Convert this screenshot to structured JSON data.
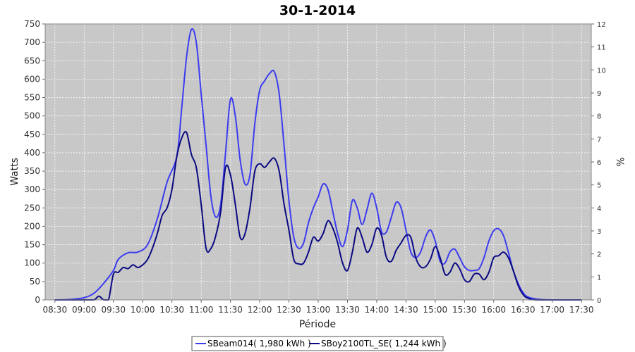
{
  "chart_data": {
    "type": "line",
    "title": "30-1-2014",
    "xlabel": "Périodе",
    "ylabel": "Watts",
    "y2label": "%",
    "ylim": [
      0,
      750
    ],
    "y2lim": [
      0,
      12
    ],
    "xlim": [
      "08:20",
      "17:40"
    ],
    "yticks": [
      0,
      50,
      100,
      150,
      200,
      250,
      300,
      350,
      400,
      450,
      500,
      550,
      600,
      650,
      700,
      750
    ],
    "y2ticks": [
      0,
      1,
      2,
      3,
      4,
      5,
      6,
      7,
      8,
      9,
      10,
      11,
      12
    ],
    "xticks": [
      "08:30",
      "09:00",
      "09:30",
      "10:00",
      "10:30",
      "11:00",
      "11:30",
      "12:00",
      "12:30",
      "13:00",
      "13:30",
      "14:00",
      "14:30",
      "15:00",
      "15:30",
      "16:00",
      "16:30",
      "17:00",
      "17:30"
    ],
    "grid": true,
    "legend_position": "bottom",
    "colors": {
      "plot_bg": "#c8c8c8",
      "grid": "#ffffff"
    },
    "series": [
      {
        "name": "SBeam014( 1,980 kWh )",
        "color": "#3c3cf0",
        "points": [
          [
            "08:30",
            0
          ],
          [
            "08:45",
            1
          ],
          [
            "09:00",
            6
          ],
          [
            "09:10",
            18
          ],
          [
            "09:20",
            45
          ],
          [
            "09:30",
            80
          ],
          [
            "09:35",
            110
          ],
          [
            "09:45",
            128
          ],
          [
            "09:55",
            130
          ],
          [
            "10:05",
            150
          ],
          [
            "10:15",
            220
          ],
          [
            "10:25",
            320
          ],
          [
            "10:35",
            390
          ],
          [
            "10:40",
            520
          ],
          [
            "10:45",
            660
          ],
          [
            "10:50",
            735
          ],
          [
            "10:55",
            700
          ],
          [
            "11:00",
            560
          ],
          [
            "11:05",
            420
          ],
          [
            "11:10",
            280
          ],
          [
            "11:15",
            225
          ],
          [
            "11:20",
            260
          ],
          [
            "11:25",
            400
          ],
          [
            "11:30",
            545
          ],
          [
            "11:35",
            500
          ],
          [
            "11:40",
            380
          ],
          [
            "11:45",
            315
          ],
          [
            "11:50",
            340
          ],
          [
            "11:55",
            480
          ],
          [
            "12:00",
            570
          ],
          [
            "12:05",
            595
          ],
          [
            "12:10",
            615
          ],
          [
            "12:15",
            620
          ],
          [
            "12:20",
            560
          ],
          [
            "12:25",
            420
          ],
          [
            "12:30",
            270
          ],
          [
            "12:35",
            170
          ],
          [
            "12:40",
            140
          ],
          [
            "12:45",
            155
          ],
          [
            "12:50",
            210
          ],
          [
            "12:55",
            250
          ],
          [
            "13:00",
            280
          ],
          [
            "13:05",
            315
          ],
          [
            "13:10",
            300
          ],
          [
            "13:15",
            240
          ],
          [
            "13:20",
            180
          ],
          [
            "13:25",
            145
          ],
          [
            "13:30",
            190
          ],
          [
            "13:35",
            270
          ],
          [
            "13:40",
            250
          ],
          [
            "13:45",
            205
          ],
          [
            "13:50",
            245
          ],
          [
            "13:55",
            290
          ],
          [
            "14:00",
            250
          ],
          [
            "14:05",
            185
          ],
          [
            "14:10",
            185
          ],
          [
            "14:15",
            225
          ],
          [
            "14:20",
            265
          ],
          [
            "14:25",
            250
          ],
          [
            "14:30",
            190
          ],
          [
            "14:35",
            130
          ],
          [
            "14:40",
            115
          ],
          [
            "14:45",
            130
          ],
          [
            "14:50",
            170
          ],
          [
            "14:55",
            190
          ],
          [
            "15:00",
            160
          ],
          [
            "15:05",
            105
          ],
          [
            "15:10",
            100
          ],
          [
            "15:15",
            130
          ],
          [
            "15:20",
            138
          ],
          [
            "15:25",
            115
          ],
          [
            "15:30",
            90
          ],
          [
            "15:35",
            80
          ],
          [
            "15:40",
            80
          ],
          [
            "15:45",
            85
          ],
          [
            "15:50",
            115
          ],
          [
            "15:55",
            160
          ],
          [
            "16:00",
            188
          ],
          [
            "16:05",
            193
          ],
          [
            "16:10",
            175
          ],
          [
            "16:15",
            130
          ],
          [
            "16:20",
            80
          ],
          [
            "16:25",
            45
          ],
          [
            "16:30",
            20
          ],
          [
            "16:35",
            8
          ],
          [
            "16:45",
            2
          ],
          [
            "17:00",
            0
          ],
          [
            "17:30",
            0
          ]
        ]
      },
      {
        "name": "SBoy2100TL_SE( 1,244 kWh )",
        "color": "#0a0a82",
        "points": [
          [
            "08:30",
            0
          ],
          [
            "09:00",
            0
          ],
          [
            "09:10",
            0
          ],
          [
            "09:15",
            10
          ],
          [
            "09:20",
            0
          ],
          [
            "09:25",
            0
          ],
          [
            "09:30",
            70
          ],
          [
            "09:35",
            75
          ],
          [
            "09:40",
            88
          ],
          [
            "09:45",
            85
          ],
          [
            "09:50",
            95
          ],
          [
            "09:55",
            88
          ],
          [
            "10:00",
            95
          ],
          [
            "10:05",
            110
          ],
          [
            "10:10",
            140
          ],
          [
            "10:15",
            180
          ],
          [
            "10:20",
            230
          ],
          [
            "10:25",
            250
          ],
          [
            "10:30",
            300
          ],
          [
            "10:35",
            390
          ],
          [
            "10:40",
            440
          ],
          [
            "10:45",
            455
          ],
          [
            "10:50",
            395
          ],
          [
            "10:55",
            360
          ],
          [
            "11:00",
            260
          ],
          [
            "11:05",
            140
          ],
          [
            "11:10",
            140
          ],
          [
            "11:15",
            175
          ],
          [
            "11:20",
            240
          ],
          [
            "11:25",
            360
          ],
          [
            "11:30",
            340
          ],
          [
            "11:35",
            260
          ],
          [
            "11:40",
            170
          ],
          [
            "11:45",
            180
          ],
          [
            "11:50",
            250
          ],
          [
            "11:55",
            350
          ],
          [
            "12:00",
            370
          ],
          [
            "12:05",
            360
          ],
          [
            "12:10",
            375
          ],
          [
            "12:15",
            385
          ],
          [
            "12:20",
            350
          ],
          [
            "12:25",
            260
          ],
          [
            "12:30",
            190
          ],
          [
            "12:35",
            110
          ],
          [
            "12:40",
            98
          ],
          [
            "12:45",
            100
          ],
          [
            "12:50",
            130
          ],
          [
            "12:55",
            170
          ],
          [
            "13:00",
            160
          ],
          [
            "13:05",
            180
          ],
          [
            "13:10",
            215
          ],
          [
            "13:15",
            195
          ],
          [
            "13:20",
            155
          ],
          [
            "13:25",
            100
          ],
          [
            "13:30",
            80
          ],
          [
            "13:35",
            130
          ],
          [
            "13:40",
            195
          ],
          [
            "13:45",
            170
          ],
          [
            "13:50",
            130
          ],
          [
            "13:55",
            150
          ],
          [
            "14:00",
            195
          ],
          [
            "14:05",
            175
          ],
          [
            "14:10",
            115
          ],
          [
            "14:15",
            105
          ],
          [
            "14:20",
            135
          ],
          [
            "14:25",
            155
          ],
          [
            "14:30",
            175
          ],
          [
            "14:35",
            170
          ],
          [
            "14:40",
            115
          ],
          [
            "14:45",
            90
          ],
          [
            "14:50",
            90
          ],
          [
            "14:55",
            110
          ],
          [
            "15:00",
            145
          ],
          [
            "15:05",
            115
          ],
          [
            "15:10",
            70
          ],
          [
            "15:15",
            75
          ],
          [
            "15:20",
            100
          ],
          [
            "15:25",
            85
          ],
          [
            "15:30",
            55
          ],
          [
            "15:35",
            50
          ],
          [
            "15:40",
            70
          ],
          [
            "15:45",
            70
          ],
          [
            "15:50",
            55
          ],
          [
            "15:55",
            75
          ],
          [
            "16:00",
            115
          ],
          [
            "16:05",
            120
          ],
          [
            "16:10",
            130
          ],
          [
            "16:15",
            115
          ],
          [
            "16:20",
            80
          ],
          [
            "16:25",
            40
          ],
          [
            "16:30",
            15
          ],
          [
            "16:35",
            5
          ],
          [
            "16:45",
            0
          ],
          [
            "17:30",
            0
          ]
        ]
      }
    ]
  }
}
